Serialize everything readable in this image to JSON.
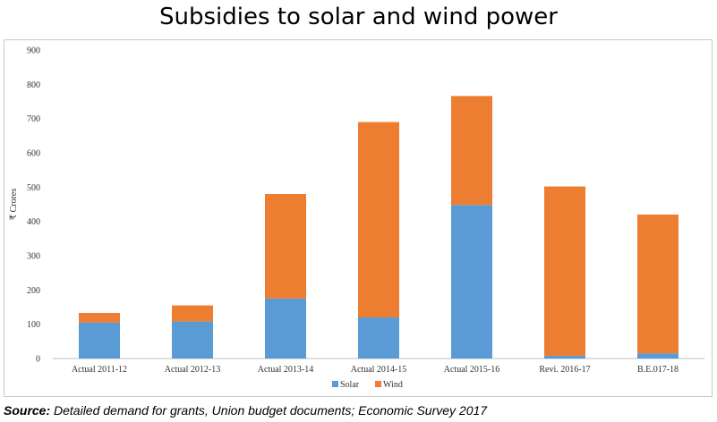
{
  "chart_data": {
    "type": "bar",
    "stacked": true,
    "title": "Subsidies to solar and wind power",
    "ylabel": "₹ Crores",
    "xlabel": "",
    "ylim": [
      0,
      900
    ],
    "yticks": [
      0,
      100,
      200,
      300,
      400,
      500,
      600,
      700,
      800,
      900
    ],
    "grid": false,
    "legend": "bottom",
    "categories": [
      "Actual  2011-12",
      "Actual 2012-13",
      "Actual  2013-14",
      "Actual  2014-15",
      "Actual  2015-16",
      "Revi.  2016-17",
      "B.E.017-18"
    ],
    "series": [
      {
        "name": "Solar",
        "color": "#5b9bd5",
        "values": [
          105,
          108,
          175,
          120,
          448,
          8,
          15
        ]
      },
      {
        "name": "Wind",
        "color": "#ed7d31",
        "values": [
          28,
          47,
          305,
          570,
          318,
          494,
          405
        ]
      }
    ]
  },
  "source": {
    "label": "Source:",
    "text": " Detailed demand for grants, Union budget documents; Economic Survey 2017"
  }
}
